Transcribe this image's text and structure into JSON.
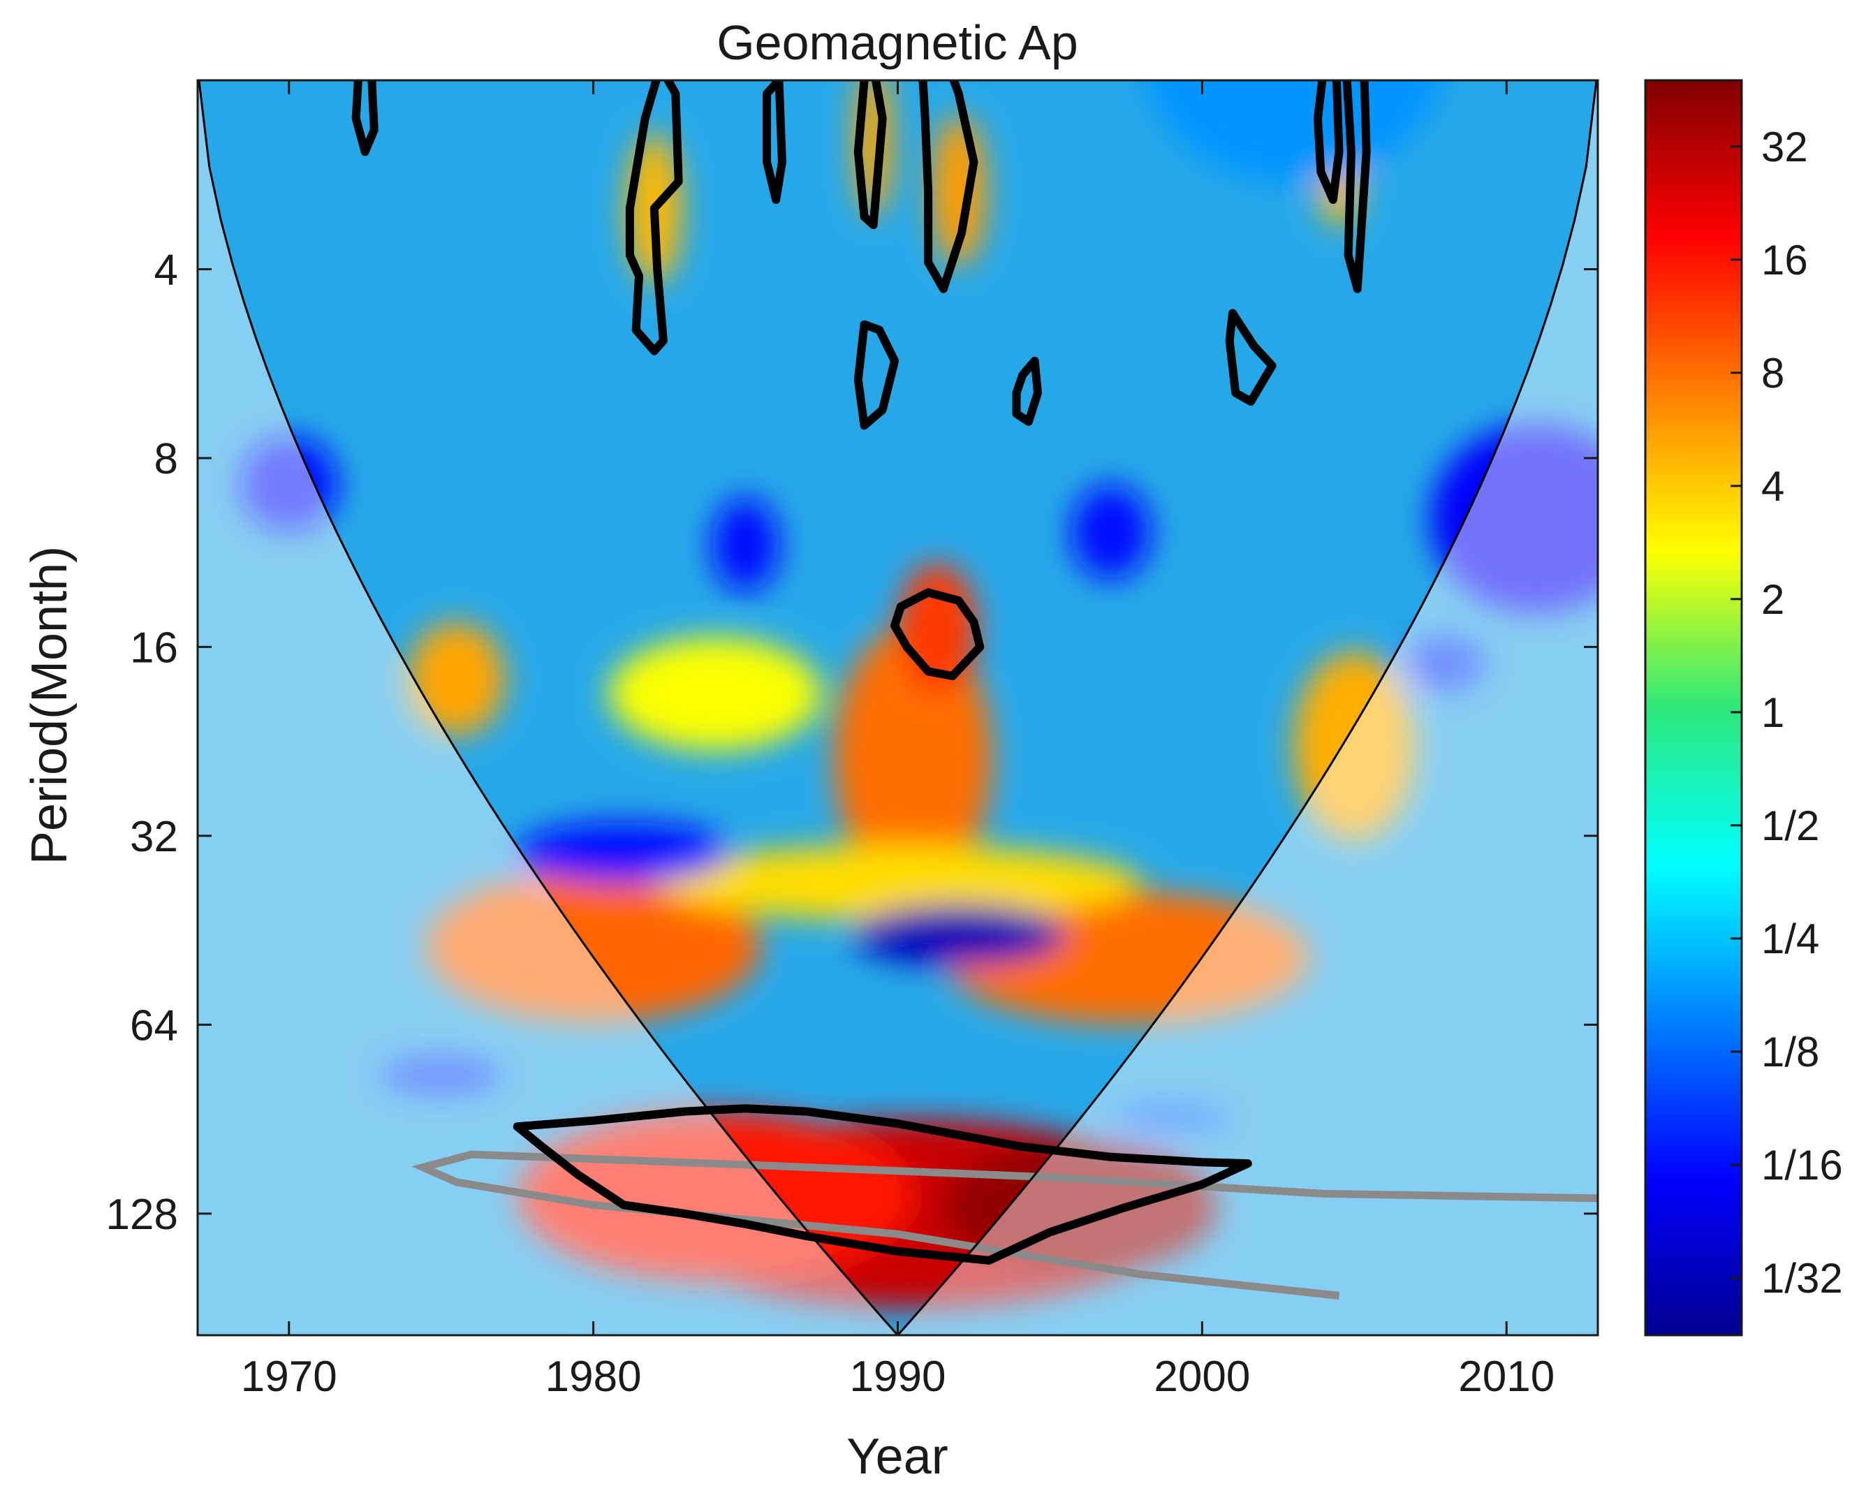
{
  "chart_data": {
    "type": "heatmap",
    "title": "Geomagnetic Ap",
    "xlabel": "Year",
    "ylabel": "Period(Month)",
    "x_range": [
      1967,
      2013
    ],
    "xticks": [
      "1970",
      "1980",
      "1990",
      "2000",
      "2010"
    ],
    "y_scale": "log2",
    "y_range": [
      2,
      200
    ],
    "y_reversed": true,
    "yticks": [
      "4",
      "8",
      "16",
      "32",
      "64",
      "128"
    ],
    "colormap": "jet",
    "colorbar": {
      "scale": "log2",
      "range": [
        0.022,
        48
      ],
      "ticks": [
        "32",
        "16",
        "8",
        "4",
        "2",
        "1",
        "1/2",
        "1/4",
        "1/8",
        "1/16",
        "1/32"
      ]
    },
    "power_regions": [
      {
        "t": 1990.5,
        "p": 128,
        "dt": 9.0,
        "dp": 0.5,
        "log2_power": 4.8
      },
      {
        "t": 1996,
        "p": 125,
        "dt": 4.5,
        "dp": 0.35,
        "log2_power": 5.4
      },
      {
        "t": 1984,
        "p": 120,
        "dt": 6.5,
        "dp": 0.45,
        "log2_power": 4.0
      },
      {
        "t": 1980,
        "p": 48,
        "dt": 5.5,
        "dp": 0.4,
        "log2_power": 3.1
      },
      {
        "t": 1997.5,
        "p": 50,
        "dt": 6.0,
        "dp": 0.35,
        "log2_power": 3.0
      },
      {
        "t": 1990.5,
        "p": 24,
        "dt": 2.6,
        "dp": 0.7,
        "log2_power": 3.0
      },
      {
        "t": 1991.3,
        "p": 15,
        "dt": 1.3,
        "dp": 0.35,
        "log2_power": 3.6
      },
      {
        "t": 1975.5,
        "p": 18,
        "dt": 1.6,
        "dp": 0.3,
        "log2_power": 2.4
      },
      {
        "t": 2005,
        "p": 23,
        "dt": 2.0,
        "dp": 0.5,
        "log2_power": 2.3
      },
      {
        "t": 1984,
        "p": 19,
        "dt": 3.5,
        "dp": 0.3,
        "log2_power": 1.4
      },
      {
        "t": 1992,
        "p": 3,
        "dt": 0.9,
        "dp": 0.4,
        "log2_power": 2.5
      },
      {
        "t": 1982,
        "p": 3.2,
        "dt": 0.9,
        "dp": 0.4,
        "log2_power": 2.2
      },
      {
        "t": 1989.2,
        "p": 2.5,
        "dt": 0.6,
        "dp": 0.4,
        "log2_power": 2.4
      },
      {
        "t": 2004.5,
        "p": 2.6,
        "dt": 0.8,
        "dp": 0.4,
        "log2_power": 2.2
      },
      {
        "t": 1990,
        "p": 38,
        "dt": 8.0,
        "dp": 0.2,
        "log2_power": 1.8
      },
      {
        "t": 1992,
        "p": 46,
        "dt": 3.5,
        "dp": 0.16,
        "log2_power": -5.0
      },
      {
        "t": 2011,
        "p": 10,
        "dt": 3.5,
        "dp": 0.5,
        "log2_power": -4.2
      },
      {
        "t": 1970,
        "p": 8.8,
        "dt": 1.6,
        "dp": 0.25,
        "log2_power": -4.0
      },
      {
        "t": 1981,
        "p": 34,
        "dt": 3.5,
        "dp": 0.16,
        "log2_power": -4.0
      },
      {
        "t": 1975,
        "p": 77,
        "dt": 2.0,
        "dp": 0.1,
        "log2_power": -3.5
      },
      {
        "t": 1997,
        "p": 10.5,
        "dt": 1.3,
        "dp": 0.25,
        "log2_power": -4.0
      },
      {
        "t": 1985,
        "p": 11,
        "dt": 1.1,
        "dp": 0.25,
        "log2_power": -4.0
      },
      {
        "t": 1999,
        "p": 90,
        "dt": 2.0,
        "dp": 0.08,
        "log2_power": -3.0
      },
      {
        "t": 2008,
        "p": 17,
        "dt": 1.3,
        "dp": 0.15,
        "log2_power": -3.5
      },
      {
        "t": 2003,
        "p": 1.8,
        "dt": 5.0,
        "dp": 0.7,
        "log2_power": -2.5
      }
    ],
    "significance_contours": [
      {
        "points": [
          [
            1977.5,
            93
          ],
          [
            1980,
            91
          ],
          [
            1983,
            88
          ],
          [
            1985,
            87
          ],
          [
            1987,
            88
          ],
          [
            1990,
            92
          ],
          [
            1994,
            100
          ],
          [
            1997,
            104
          ],
          [
            2000,
            106
          ],
          [
            2001.5,
            106.5
          ],
          [
            2000,
            115
          ],
          [
            1997.5,
            125
          ],
          [
            1995,
            137
          ],
          [
            1993,
            152
          ],
          [
            1990,
            147
          ],
          [
            1987,
            139
          ],
          [
            1985,
            133
          ],
          [
            1983,
            128
          ],
          [
            1981,
            124
          ],
          [
            1979.5,
            111
          ],
          [
            1978.3,
            100
          ]
        ]
      },
      {
        "points": [
          [
            1990.1,
            13.8
          ],
          [
            1991,
            13.1
          ],
          [
            1992,
            13.5
          ],
          [
            1992.5,
            14.6
          ],
          [
            1992.7,
            16.0
          ],
          [
            1991.8,
            17.8
          ],
          [
            1991.0,
            17.5
          ],
          [
            1990.3,
            16
          ],
          [
            1989.9,
            14.8
          ]
        ]
      },
      {
        "points": [
          [
            1988.9,
            4.9
          ],
          [
            1989.4,
            5.0
          ],
          [
            1989.9,
            5.6
          ],
          [
            1989.5,
            6.7
          ],
          [
            1988.9,
            7.1
          ],
          [
            1988.7,
            6.0
          ]
        ]
      },
      {
        "points": [
          [
            1994.1,
            5.9
          ],
          [
            1994.5,
            5.6
          ],
          [
            1994.6,
            6.3
          ],
          [
            1994.3,
            7.0
          ],
          [
            1993.9,
            6.8
          ],
          [
            1993.9,
            6.3
          ]
        ]
      },
      {
        "points": [
          [
            2001.0,
            4.7
          ],
          [
            2001.7,
            5.3
          ],
          [
            2002.3,
            5.7
          ],
          [
            2001.6,
            6.5
          ],
          [
            2001.1,
            6.3
          ],
          [
            2000.9,
            5.2
          ]
        ]
      },
      {
        "points": [
          [
            1981.2,
            3.2
          ],
          [
            1981.7,
            2.3
          ],
          [
            1982.2,
            1.9
          ],
          [
            1982.7,
            2.1
          ],
          [
            1982.8,
            2.9
          ],
          [
            1982.0,
            3.2
          ],
          [
            1982.1,
            4.0
          ],
          [
            1982.3,
            5.2
          ],
          [
            1982.0,
            5.4
          ],
          [
            1981.4,
            5.0
          ],
          [
            1981.5,
            4.1
          ],
          [
            1981.2,
            3.8
          ]
        ]
      },
      {
        "points": [
          [
            1988.9,
            2.0
          ],
          [
            1989.2,
            1.9
          ],
          [
            1989.5,
            2.3
          ],
          [
            1989.2,
            3.4
          ],
          [
            1988.9,
            3.3
          ],
          [
            1988.7,
            2.6
          ]
        ]
      },
      {
        "points": [
          [
            1990.8,
            1.9
          ],
          [
            1991.5,
            1.8
          ],
          [
            1992.0,
            2.1
          ],
          [
            1992.5,
            2.7
          ],
          [
            1992.1,
            3.5
          ],
          [
            1991.5,
            4.3
          ],
          [
            1991.0,
            3.9
          ],
          [
            1991.0,
            3.0
          ],
          [
            1990.9,
            2.3
          ]
        ]
      },
      {
        "points": [
          [
            2004.0,
            1.9
          ],
          [
            2004.4,
            1.9
          ],
          [
            2004.5,
            2.6
          ],
          [
            2004.3,
            3.1
          ],
          [
            2003.9,
            2.8
          ],
          [
            2003.8,
            2.3
          ]
        ]
      },
      {
        "points": [
          [
            2004.7,
            1.8
          ],
          [
            2005.3,
            1.8
          ],
          [
            2005.4,
            2.6
          ],
          [
            2005.1,
            4.3
          ],
          [
            2004.8,
            3.8
          ],
          [
            2004.9,
            2.6
          ]
        ]
      },
      {
        "points": [
          [
            1972.3,
            1.9
          ],
          [
            1972.7,
            1.9
          ],
          [
            1972.8,
            2.4
          ],
          [
            1972.5,
            2.6
          ],
          [
            1972.2,
            2.3
          ]
        ]
      },
      {
        "points": [
          [
            1985.7,
            2.1
          ],
          [
            1986.1,
            2.0
          ],
          [
            1986.2,
            2.7
          ],
          [
            1986.0,
            3.1
          ],
          [
            1985.7,
            2.7
          ]
        ]
      }
    ]
  }
}
